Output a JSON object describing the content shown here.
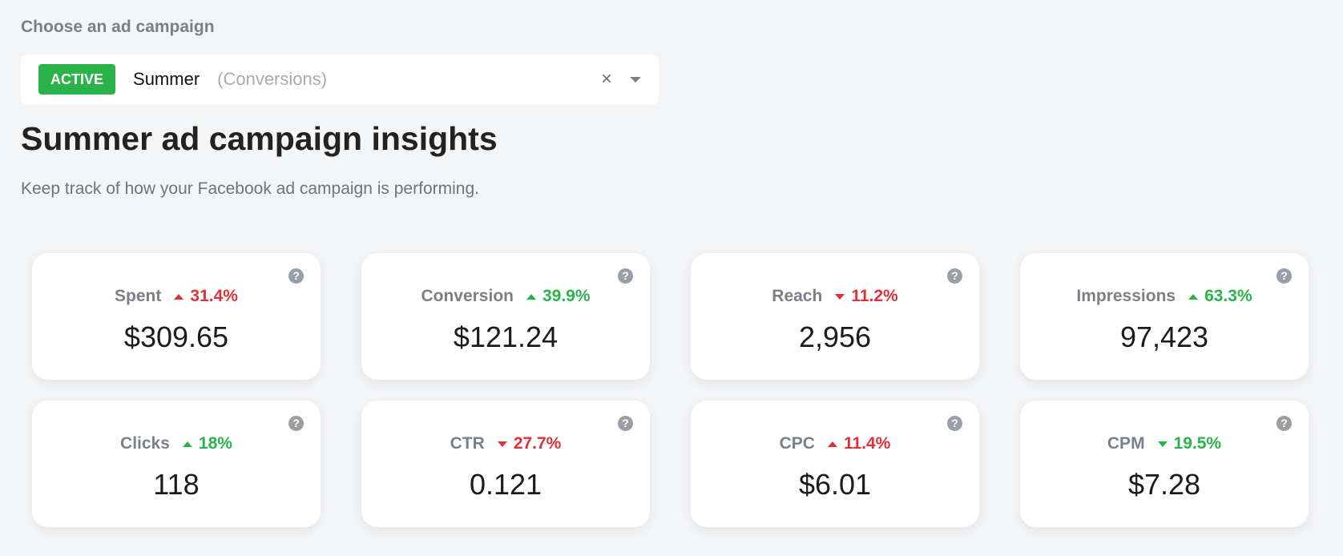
{
  "selector": {
    "label": "Choose an ad campaign",
    "status_badge": "ACTIVE",
    "campaign_name": "Summer",
    "campaign_type": "(Conversions)",
    "clear_glyph": "×"
  },
  "heading": {
    "title": "Summer ad campaign insights",
    "description": "Keep track of how your Facebook ad campaign is performing."
  },
  "colors": {
    "active": "#2bb34b",
    "positive": "#2bb34b",
    "negative": "#e0303a"
  },
  "metrics": [
    {
      "label": "Spent",
      "change": "31.4%",
      "direction": "up",
      "tone": "red",
      "value": "$309.65"
    },
    {
      "label": "Conversion",
      "change": "39.9%",
      "direction": "up",
      "tone": "green",
      "value": "$121.24"
    },
    {
      "label": "Reach",
      "change": "11.2%",
      "direction": "down",
      "tone": "red",
      "value": "2,956"
    },
    {
      "label": "Impressions",
      "change": "63.3%",
      "direction": "up",
      "tone": "green",
      "value": "97,423"
    },
    {
      "label": "Clicks",
      "change": "18%",
      "direction": "up",
      "tone": "green",
      "value": "118"
    },
    {
      "label": "CTR",
      "change": "27.7%",
      "direction": "down",
      "tone": "red",
      "value": "0.121"
    },
    {
      "label": "CPC",
      "change": "11.4%",
      "direction": "up",
      "tone": "red",
      "value": "$6.01"
    },
    {
      "label": "CPM",
      "change": "19.5%",
      "direction": "down",
      "tone": "green",
      "value": "$7.28"
    }
  ]
}
